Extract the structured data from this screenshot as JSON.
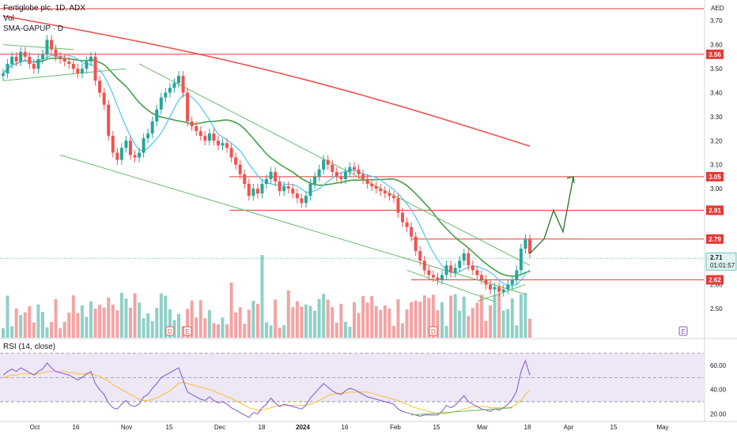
{
  "header": {
    "title": "Fertiglobe plc, 1D, ADX",
    "vol_label": "Vol",
    "sma_label": "SMA-GAPUP · D",
    "currency": "AED",
    "rsi_label": "RSI (14, close)"
  },
  "price_tag": {
    "value": "2.71",
    "countdown": "01:01:57"
  },
  "colors": {
    "up": "#26a69a",
    "down": "#ef5350",
    "vol_up": "#8fd0c7",
    "vol_down": "#f4a3a3",
    "level_line": "#e53935",
    "sma_slow": "#ef5350",
    "sma_mid": "#43a047",
    "sma_fast": "#4fc3f7",
    "channel": "#66bb6a",
    "rsi_line": "#7e57c2",
    "rsi_ma": "#fbc02d",
    "rsi_band": "#ede7f6",
    "arrow": "#2e7d32"
  },
  "chart_data": [
    {
      "type": "candlestick",
      "title": "Fertiglobe plc, 1D, ADX",
      "price_axis_ticks": [
        "3.70",
        "3.60",
        "3.50",
        "3.40",
        "3.30",
        "3.20",
        "3.10",
        "3.00",
        "2.90",
        "2.80",
        "2.70",
        "2.60",
        "2.50"
      ],
      "time_axis_ticks": [
        "Oct",
        "16",
        "Nov",
        "15",
        "Dec",
        "18",
        "2024",
        "16",
        "Feb",
        "15",
        "Mar",
        "18",
        "Apr",
        "15",
        "May"
      ],
      "ylim": [
        2.42,
        3.76
      ],
      "horizontal_levels": [
        "3.56",
        "3.05",
        "2.91",
        "2.79",
        "2.62"
      ],
      "top_level": 3.75,
      "last_price": 2.71,
      "events": [
        "D",
        "E",
        "D",
        "E",
        "E"
      ],
      "closes": [
        3.48,
        3.52,
        3.55,
        3.53,
        3.57,
        3.55,
        3.52,
        3.5,
        3.54,
        3.56,
        3.62,
        3.58,
        3.55,
        3.54,
        3.53,
        3.52,
        3.5,
        3.48,
        3.5,
        3.53,
        3.55,
        3.45,
        3.4,
        3.35,
        3.22,
        3.15,
        3.12,
        3.17,
        3.2,
        3.14,
        3.13,
        3.15,
        3.21,
        3.23,
        3.28,
        3.33,
        3.38,
        3.4,
        3.42,
        3.44,
        3.47,
        3.4,
        3.28,
        3.26,
        3.24,
        3.22,
        3.2,
        3.23,
        3.2,
        3.18,
        3.19,
        3.17,
        3.13,
        3.1,
        3.06,
        3.02,
        2.97,
        3.0,
        2.98,
        3.02,
        3.04,
        3.07,
        3.03,
        2.99,
        3.01,
        3.0,
        2.98,
        2.96,
        2.94,
        2.97,
        3.02,
        3.05,
        3.08,
        3.12,
        3.1,
        3.07,
        3.05,
        3.04,
        3.07,
        3.09,
        3.08,
        3.06,
        3.04,
        3.02,
        3.01,
        3.0,
        2.99,
        2.98,
        2.97,
        2.96,
        2.9,
        2.86,
        2.84,
        2.8,
        2.74,
        2.7,
        2.66,
        2.64,
        2.63,
        2.62,
        2.64,
        2.68,
        2.65,
        2.67,
        2.7,
        2.73,
        2.68,
        2.66,
        2.64,
        2.62,
        2.6,
        2.58,
        2.59,
        2.57,
        2.58,
        2.6,
        2.62,
        2.66,
        2.75,
        2.79,
        2.73
      ]
    },
    {
      "type": "line",
      "title": "RSI (14, close)",
      "yticks": [
        "60.00",
        "40.00",
        "20.00"
      ],
      "ylim": [
        15,
        75
      ],
      "bands": [
        70,
        50,
        30
      ],
      "values": [
        52,
        55,
        57,
        55,
        58,
        56,
        54,
        52,
        55,
        57,
        62,
        58,
        55,
        54,
        53,
        52,
        50,
        48,
        50,
        53,
        55,
        45,
        40,
        36,
        29,
        25,
        24,
        28,
        31,
        27,
        26,
        28,
        34,
        36,
        41,
        45,
        50,
        52,
        54,
        56,
        58,
        48,
        38,
        36,
        34,
        32,
        31,
        34,
        31,
        29,
        30,
        28,
        25,
        23,
        21,
        19,
        17,
        21,
        20,
        25,
        28,
        33,
        29,
        26,
        28,
        27,
        26,
        25,
        24,
        27,
        33,
        37,
        41,
        45,
        42,
        39,
        37,
        36,
        39,
        41,
        40,
        38,
        36,
        34,
        33,
        32,
        31,
        30,
        29,
        28,
        24,
        22,
        21,
        20,
        19,
        18,
        19,
        19,
        19,
        19,
        22,
        27,
        25,
        27,
        31,
        35,
        30,
        28,
        26,
        24,
        23,
        22,
        24,
        23,
        25,
        28,
        32,
        39,
        55,
        64,
        52
      ],
      "ma_values": [
        50,
        51,
        52,
        52,
        53,
        53,
        53,
        53,
        53,
        54,
        55,
        55,
        55,
        55,
        55,
        54,
        54,
        53,
        53,
        53,
        53,
        52,
        51,
        49,
        47,
        44,
        42,
        40,
        38,
        36,
        34,
        32,
        31,
        31,
        32,
        33,
        35,
        37,
        39,
        42,
        45,
        46,
        45,
        44,
        43,
        42,
        41,
        40,
        39,
        37,
        36,
        34,
        33,
        31,
        29,
        27,
        25,
        24,
        23,
        23,
        24,
        25,
        26,
        27,
        27,
        27,
        27,
        27,
        27,
        27,
        28,
        29,
        31,
        33,
        35,
        36,
        37,
        37,
        37,
        38,
        38,
        38,
        38,
        38,
        37,
        36,
        35,
        34,
        33,
        32,
        31,
        29,
        28,
        26,
        25,
        24,
        23,
        22,
        21,
        20,
        20,
        20,
        21,
        22,
        23,
        24,
        25,
        26,
        26,
        26,
        26,
        25,
        25,
        25,
        25,
        25,
        26,
        28,
        31,
        36,
        40
      ]
    }
  ]
}
